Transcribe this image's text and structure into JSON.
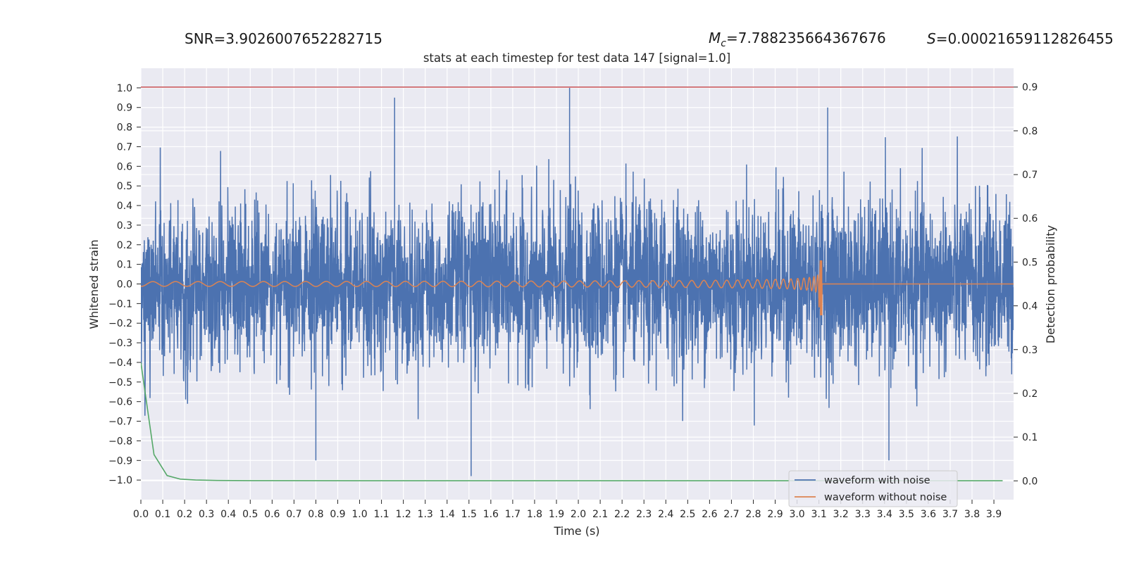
{
  "header": {
    "snr_text": "SNR=3.9026007652282715",
    "mc_symbol": "M",
    "mc_subscript": "c",
    "mc_value": "=7.788235664367676",
    "s_symbol": "S",
    "s_value": "=0.00021659112826455"
  },
  "chart_data": {
    "type": "line",
    "title": "stats at each timestep for test data 147 [signal=1.0]",
    "xlabel": "Time (s)",
    "ylabel": "Whitened strain",
    "y2label": "Detection probability",
    "xlim": [
      0.0,
      3.99
    ],
    "ylim": [
      -1.1,
      1.1
    ],
    "y2lim": [
      -0.043,
      0.943
    ],
    "x_ticks": [
      "0.0",
      "0.1",
      "0.2",
      "0.3",
      "0.4",
      "0.5",
      "0.6",
      "0.7",
      "0.8",
      "0.9",
      "1.0",
      "1.1",
      "1.2",
      "1.3",
      "1.4",
      "1.5",
      "1.6",
      "1.7",
      "1.8",
      "1.9",
      "2.0",
      "2.1",
      "2.2",
      "2.3",
      "2.4",
      "2.5",
      "2.6",
      "2.7",
      "2.8",
      "2.9",
      "3.0",
      "3.1",
      "3.2",
      "3.3",
      "3.4",
      "3.5",
      "3.6",
      "3.7",
      "3.8",
      "3.9"
    ],
    "y_ticks": [
      "1.0",
      "0.9",
      "0.8",
      "0.7",
      "0.6",
      "0.5",
      "0.4",
      "0.3",
      "0.2",
      "0.1",
      "0.0",
      "−0.1",
      "−0.2",
      "−0.3",
      "−0.4",
      "−0.5",
      "−0.6",
      "−0.7",
      "−0.8",
      "−0.9",
      "−1.0"
    ],
    "y2_ticks": [
      "0.9",
      "0.8",
      "0.7",
      "0.6",
      "0.5",
      "0.4",
      "0.3",
      "0.2",
      "0.1",
      "0.0"
    ],
    "grid": true,
    "legend_position": "lower-right",
    "series": [
      {
        "name": "waveform with noise",
        "axis": "left",
        "color": "#4c72b0",
        "rendering": "dense noise trace, amplitude mostly within -0.6 to 0.6, peaks near ±1.0",
        "peaks": [
          [
            1.96,
            1.0
          ],
          [
            1.51,
            -0.98
          ],
          [
            3.42,
            -0.9
          ],
          [
            0.8,
            -0.9
          ],
          [
            1.16,
            0.95
          ],
          [
            3.14,
            0.9
          ]
        ]
      },
      {
        "name": "waveform without noise",
        "axis": "left",
        "color": "#dd8452",
        "rendering": "chirp, amplitude grows toward merger near 3.11 s then flat 0",
        "merger_time": 3.11,
        "peak_amplitude": 0.12,
        "min_amplitude": -0.16
      },
      {
        "axis": "right",
        "color": "#55a868",
        "x": [
          0.0,
          0.06,
          0.12,
          0.18,
          0.25,
          0.35,
          0.5,
          1.0,
          2.0,
          3.0,
          3.94
        ],
        "values": [
          0.27,
          0.06,
          0.012,
          0.004,
          0.002,
          0.001,
          0.0005,
          0.0004,
          0.0004,
          0.0004,
          0.0004
        ]
      },
      {
        "axis": "right",
        "color": "#c44e52",
        "rendering": "threshold line",
        "x": [
          0.0,
          3.99
        ],
        "values": [
          0.9,
          0.9
        ]
      }
    ]
  }
}
